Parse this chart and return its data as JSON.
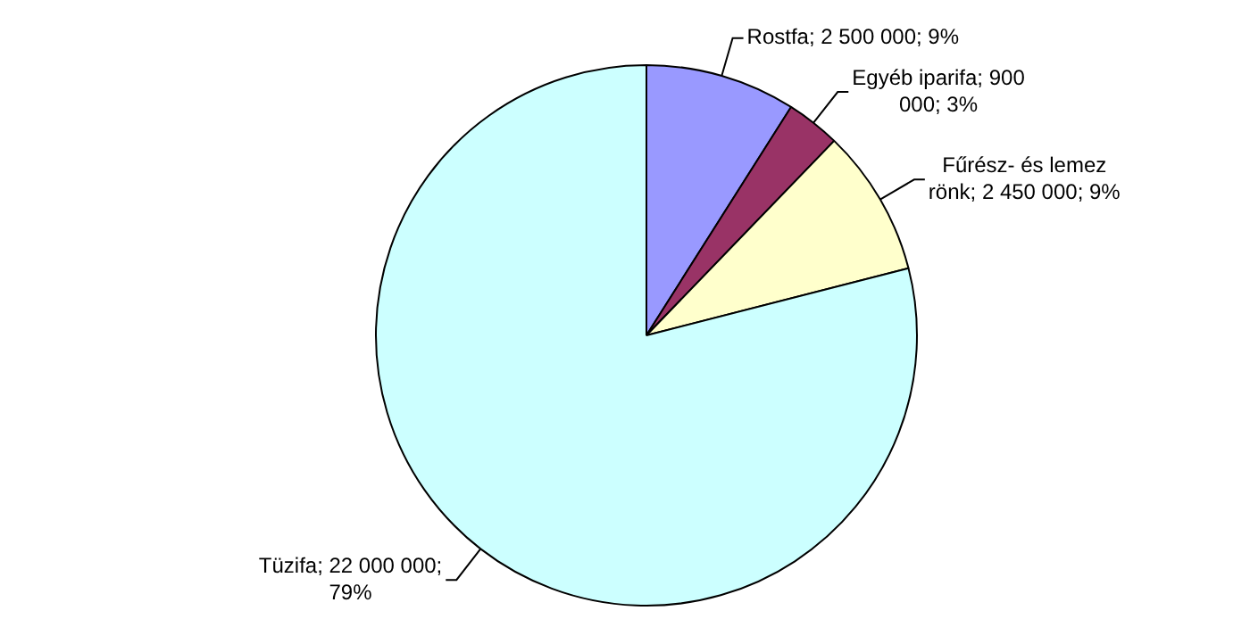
{
  "chart_data": {
    "type": "pie",
    "categories": [
      "Rostfa",
      "Egyéb iparifa",
      "Fűrész- és lemez rönk",
      "Tüzifa"
    ],
    "values": [
      2500000,
      900000,
      2450000,
      22000000
    ],
    "value_labels": [
      "2 500 000; 9%",
      "900 000; 3%",
      "2 450 000; 9%",
      "22 000 000; 79%"
    ],
    "colors": [
      "#9999ff",
      "#993366",
      "#ffffcc",
      "#ccffff"
    ],
    "legend": false
  }
}
